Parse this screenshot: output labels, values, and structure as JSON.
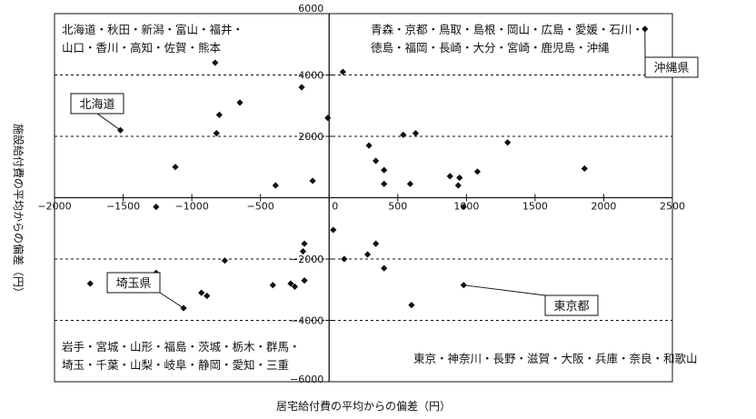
{
  "chart_data": {
    "type": "scatter",
    "xlabel": "居宅給付費の平均からの偏差（円）",
    "ylabel": "施設給付費の平均からの偏差（円）",
    "xlim": [
      -2000,
      2500
    ],
    "ylim": [
      -6000,
      6000
    ],
    "x_ticks": [
      -2000,
      -1500,
      -1000,
      -500,
      0,
      500,
      1000,
      1500,
      2000,
      2500
    ],
    "y_ticks": [
      6000,
      4000,
      2000,
      0,
      -2000,
      -4000,
      -6000
    ],
    "x_tick_labels": [
      "−2000",
      "−1500",
      "−1000",
      "−500",
      "0",
      "500",
      "1000",
      "1500",
      "2000",
      "2500"
    ],
    "y_tick_labels": [
      "6000",
      "4000",
      "2000",
      "0",
      "−2000",
      "−4000",
      "−6000"
    ],
    "grid": false,
    "reference_lines_y": [
      4000,
      2000,
      -2000,
      -4000
    ],
    "points": [
      {
        "x": 2300,
        "y": 5500
      },
      {
        "x": 1860,
        "y": 950
      },
      {
        "x": 1300,
        "y": 1800
      },
      {
        "x": 1080,
        "y": 850
      },
      {
        "x": 980,
        "y": -300
      },
      {
        "x": 950,
        "y": 650
      },
      {
        "x": 940,
        "y": 400
      },
      {
        "x": 880,
        "y": 700
      },
      {
        "x": 630,
        "y": 2100
      },
      {
        "x": 590,
        "y": 450
      },
      {
        "x": 540,
        "y": 2050
      },
      {
        "x": 400,
        "y": 900
      },
      {
        "x": 400,
        "y": 450
      },
      {
        "x": 340,
        "y": 1200
      },
      {
        "x": 290,
        "y": 1700
      },
      {
        "x": 100,
        "y": 4100
      },
      {
        "x": -10,
        "y": 2600
      },
      {
        "x": -120,
        "y": 550
      },
      {
        "x": -200,
        "y": 3600
      },
      {
        "x": -390,
        "y": 400
      },
      {
        "x": -650,
        "y": 3100
      },
      {
        "x": -800,
        "y": 2700
      },
      {
        "x": -820,
        "y": 2100
      },
      {
        "x": -830,
        "y": 4400
      },
      {
        "x": -1120,
        "y": 1000
      },
      {
        "x": -1260,
        "y": -300
      },
      {
        "x": -1520,
        "y": 2200
      },
      {
        "x": 2300,
        "y": 5500
      },
      {
        "x": 980,
        "y": -2850
      },
      {
        "x": 600,
        "y": -3500
      },
      {
        "x": 400,
        "y": -2300
      },
      {
        "x": 340,
        "y": -1500
      },
      {
        "x": 110,
        "y": -2000
      },
      {
        "x": 30,
        "y": -1050
      },
      {
        "x": 280,
        "y": -1850
      },
      {
        "x": -180,
        "y": -1500
      },
      {
        "x": -190,
        "y": -1750
      },
      {
        "x": -250,
        "y": -2900
      },
      {
        "x": -180,
        "y": -2700
      },
      {
        "x": -280,
        "y": -2800
      },
      {
        "x": -410,
        "y": -2850
      },
      {
        "x": -760,
        "y": -2050
      },
      {
        "x": -890,
        "y": -3200
      },
      {
        "x": -930,
        "y": -3100
      },
      {
        "x": -1060,
        "y": -3600
      },
      {
        "x": -1260,
        "y": -2450
      },
      {
        "x": -1740,
        "y": -2800
      }
    ],
    "region_labels": [
      {
        "quadrant": "top-left",
        "lines": [
          "北海道・秋田・新潟・富山・福井・",
          "山口・香川・高知・佐賀・熊本"
        ]
      },
      {
        "quadrant": "top-right",
        "lines": [
          "青森・京都・鳥取・島根・岡山・広島・愛媛・石川・",
          "徳島・福岡・長崎・大分・宮崎・鹿児島・沖縄"
        ]
      },
      {
        "quadrant": "bottom-left",
        "lines": [
          "岩手・宮城・山形・福島・茨城・栃木・群馬・",
          "埼玉・千葉・山梨・岐阜・静岡・愛知・三重"
        ]
      },
      {
        "quadrant": "bottom-right",
        "lines": [
          "東京・神奈川・長野・滋賀・大阪・兵庫・奈良・和歌山"
        ]
      }
    ],
    "callouts": [
      {
        "label": "北海道",
        "point": {
          "x": -1520,
          "y": 2200
        }
      },
      {
        "label": "沖縄県",
        "point": {
          "x": 2300,
          "y": 5500
        }
      },
      {
        "label": "埼玉県",
        "point": {
          "x": -1060,
          "y": -3600
        }
      },
      {
        "label": "東京都",
        "point": {
          "x": 980,
          "y": -2850
        }
      }
    ]
  }
}
